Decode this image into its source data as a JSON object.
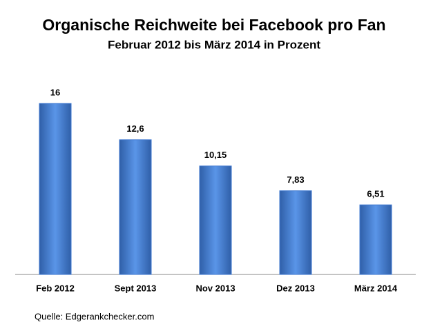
{
  "chart_data": {
    "type": "bar",
    "title": "Organische Reichweite bei Facebook pro Fan",
    "subtitle": "Februar 2012 bis März 2014 in Prozent",
    "categories": [
      "Feb 2012",
      "Sept 2013",
      "Nov 2013",
      "Dez 2013",
      "März 2014"
    ],
    "values": [
      16,
      12.6,
      10.15,
      7.83,
      6.51
    ],
    "value_labels": [
      "16",
      "12,6",
      "10,15",
      "7,83",
      "6,51"
    ],
    "color": "#3f78d0",
    "source": "Quelle: Edgerankchecker.com"
  }
}
